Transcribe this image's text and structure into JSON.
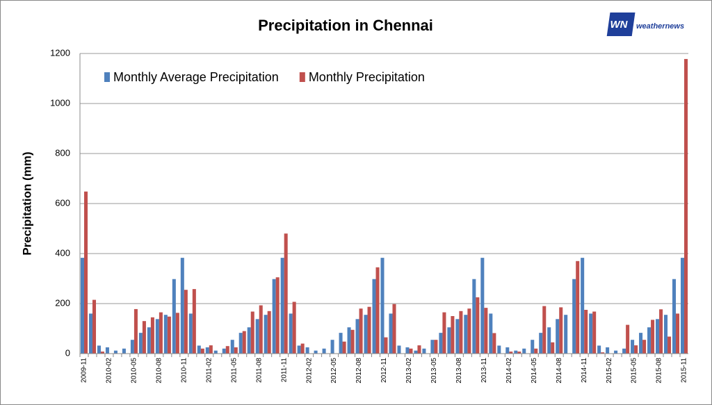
{
  "chart_data": {
    "type": "bar",
    "title": "Precipitation in Chennai",
    "y_label": "Precipitation (mm)",
    "logo": {
      "mark": "WN",
      "text": "weathernews"
    },
    "categories": [
      "2009-11",
      null,
      null,
      "2010-02",
      null,
      null,
      "2010-05",
      null,
      null,
      "2010-08",
      null,
      null,
      "2010-11",
      null,
      null,
      "2011-02",
      null,
      null,
      "2011-05",
      null,
      null,
      "2011-08",
      null,
      null,
      "2011-11",
      null,
      null,
      "2012-02",
      null,
      null,
      "2012-05",
      null,
      null,
      "2012-08",
      null,
      null,
      "2012-11",
      null,
      null,
      "2013-02",
      null,
      null,
      "2013-05",
      null,
      null,
      "2013-08",
      null,
      null,
      "2013-11",
      null,
      null,
      "2014-02",
      null,
      null,
      "2014-05",
      null,
      null,
      "2014-08",
      null,
      null,
      "2014-11",
      null,
      null,
      "2015-02",
      null,
      null,
      "2015-05",
      null,
      null,
      "2015-08",
      null,
      null,
      "2015-11"
    ],
    "series": [
      {
        "name": "Monthly Average Precipitation",
        "color": "#4f81bd",
        "values": [
          383,
          160,
          32,
          25,
          12,
          20,
          55,
          83,
          105,
          138,
          155,
          298,
          383,
          160,
          32,
          25,
          12,
          20,
          55,
          83,
          105,
          138,
          155,
          298,
          383,
          160,
          32,
          25,
          12,
          20,
          55,
          83,
          105,
          138,
          155,
          298,
          383,
          160,
          32,
          25,
          12,
          20,
          55,
          83,
          105,
          138,
          155,
          298,
          383,
          160,
          32,
          25,
          12,
          20,
          55,
          83,
          105,
          138,
          155,
          298,
          383,
          160,
          32,
          25,
          12,
          20,
          55,
          83,
          105,
          138,
          155,
          298,
          383
        ]
      },
      {
        "name": "Monthly Precipitation",
        "color": "#c0504d",
        "values": [
          648,
          215,
          8,
          0,
          0,
          0,
          178,
          130,
          145,
          165,
          148,
          163,
          255,
          258,
          20,
          33,
          0,
          30,
          25,
          90,
          168,
          193,
          170,
          305,
          480,
          207,
          40,
          0,
          0,
          0,
          0,
          48,
          95,
          180,
          187,
          345,
          65,
          198,
          0,
          20,
          33,
          0,
          55,
          165,
          150,
          170,
          180,
          225,
          183,
          82,
          0,
          8,
          8,
          0,
          20,
          190,
          45,
          185,
          0,
          370,
          175,
          168,
          5,
          0,
          0,
          115,
          33,
          55,
          135,
          177,
          68,
          160,
          1178
        ]
      }
    ],
    "ylim": [
      0,
      1200
    ],
    "yticks": [
      0,
      200,
      400,
      600,
      800,
      1000,
      1200
    ],
    "grid": true,
    "legend": "top-left"
  }
}
